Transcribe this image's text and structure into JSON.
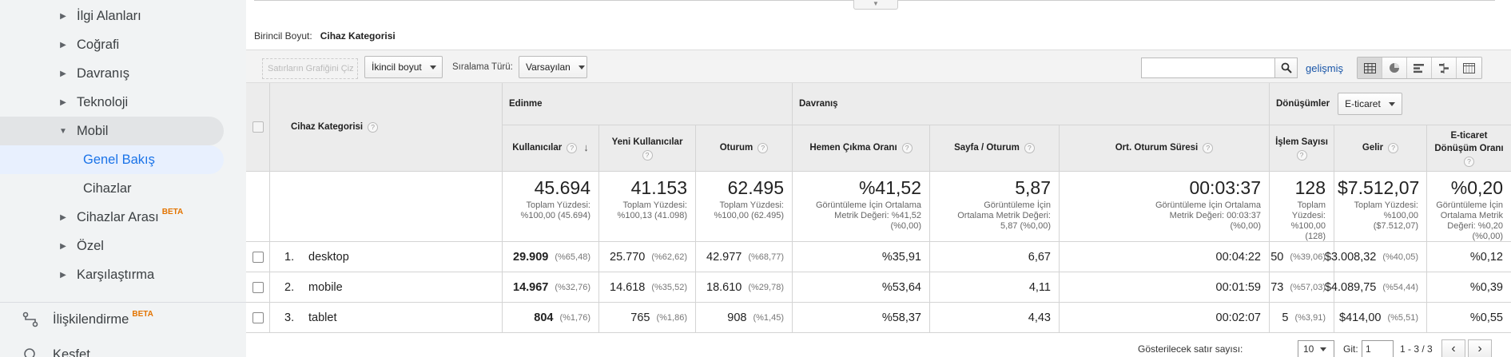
{
  "sidebar": {
    "items": [
      {
        "label": "İlgi Alanları"
      },
      {
        "label": "Coğrafi"
      },
      {
        "label": "Davranış"
      },
      {
        "label": "Teknoloji"
      },
      {
        "label": "Mobil"
      },
      {
        "label": "Genel Bakış"
      },
      {
        "label": "Cihazlar"
      },
      {
        "label": "Cihazlar Arası",
        "badge": "BETA"
      },
      {
        "label": "Özel"
      },
      {
        "label": "Karşılaştırma"
      }
    ],
    "bottom": [
      {
        "label": "İlişkilendirme",
        "badge": "BETA"
      },
      {
        "label": "Keşfet"
      }
    ]
  },
  "dimension": {
    "label": "Birincil Boyut:",
    "value": "Cihaz Kategorisi"
  },
  "toolbar": {
    "plot_rows": "Satırların Grafiğini Çiz",
    "secondary_dim": "İkincil boyut",
    "sort_label": "Sıralama Türü:",
    "sort_value": "Varsayılan",
    "search_value": "",
    "advanced": "gelişmiş"
  },
  "table": {
    "dim_header": "Cihaz Kategorisi",
    "groups": {
      "acquisition": "Edinme",
      "behavior": "Davranış",
      "conversions": "Dönüşümler",
      "conversion_type": "E-ticaret"
    },
    "columns": {
      "users": "Kullanıcılar",
      "new_users": "Yeni Kullanıcılar",
      "sessions": "Oturum",
      "bounce": "Hemen Çıkma Oranı",
      "pages": "Sayfa / Oturum",
      "duration": "Ort. Oturum Süresi",
      "transactions": "İşlem Sayısı",
      "revenue": "Gelir",
      "conv_rate": "E-ticaret Dönüşüm Oranı"
    },
    "totals": {
      "users": {
        "big": "45.694",
        "sm1": "Toplam Yüzdesi:",
        "sm2": "%100,00 (45.694)"
      },
      "new_users": {
        "big": "41.153",
        "sm1": "Toplam Yüzdesi:",
        "sm2": "%100,13 (41.098)"
      },
      "sessions": {
        "big": "62.495",
        "sm1": "Toplam Yüzdesi:",
        "sm2": "%100,00 (62.495)"
      },
      "bounce": {
        "big": "%41,52",
        "sm1": "Görüntüleme İçin Ortalama",
        "sm2": "Metrik Değeri: %41,52",
        "sm3": "(%0,00)"
      },
      "pages": {
        "big": "5,87",
        "sm1": "Görüntüleme İçin",
        "sm2": "Ortalama Metrik Değeri:",
        "sm3": "5,87 (%0,00)"
      },
      "duration": {
        "big": "00:03:37",
        "sm1": "Görüntüleme İçin Ortalama",
        "sm2": "Metrik Değeri: 00:03:37",
        "sm3": "(%0,00)"
      },
      "transactions": {
        "big": "128",
        "sm1": "Toplam",
        "sm2": "Yüzdesi:",
        "sm3": "%100,00 (128)"
      },
      "revenue": {
        "big": "$7.512,07",
        "sm1": "Toplam Yüzdesi:",
        "sm2": "%100,00 ($7.512,07)"
      },
      "conv_rate": {
        "big": "%0,20",
        "sm1": "Görüntüleme İçin",
        "sm2": "Ortalama Metrik",
        "sm3": "Değeri: %0,20 (%0,00)"
      }
    },
    "rows": [
      {
        "idx": "1.",
        "name": "desktop",
        "users": "29.909",
        "users_pct": "(%65,48)",
        "new_users": "25.770",
        "new_users_pct": "(%62,62)",
        "sessions": "42.977",
        "sessions_pct": "(%68,77)",
        "bounce": "%35,91",
        "pages": "6,67",
        "duration": "00:04:22",
        "transactions": "50",
        "transactions_pct": "(%39,06)",
        "revenue": "$3.008,32",
        "revenue_pct": "(%40,05)",
        "conv_rate": "%0,12"
      },
      {
        "idx": "2.",
        "name": "mobile",
        "users": "14.967",
        "users_pct": "(%32,76)",
        "new_users": "14.618",
        "new_users_pct": "(%35,52)",
        "sessions": "18.610",
        "sessions_pct": "(%29,78)",
        "bounce": "%53,64",
        "pages": "4,11",
        "duration": "00:01:59",
        "transactions": "73",
        "transactions_pct": "(%57,03)",
        "revenue": "$4.089,75",
        "revenue_pct": "(%54,44)",
        "conv_rate": "%0,39"
      },
      {
        "idx": "3.",
        "name": "tablet",
        "users": "804",
        "users_pct": "(%1,76)",
        "new_users": "765",
        "new_users_pct": "(%1,86)",
        "sessions": "908",
        "sessions_pct": "(%1,45)",
        "bounce": "%58,37",
        "pages": "4,43",
        "duration": "00:02:07",
        "transactions": "5",
        "transactions_pct": "(%3,91)",
        "revenue": "$414,00",
        "revenue_pct": "(%5,51)",
        "conv_rate": "%0,55"
      }
    ]
  },
  "pager": {
    "rows_label": "Gösterilecek satır sayısı:",
    "rows_value": "10",
    "goto_label": "Git:",
    "goto_value": "1",
    "range": "1 - 3 / 3"
  },
  "icons": {
    "search": "search-icon",
    "grid": "data-table-icon",
    "pie": "pie-chart-icon",
    "bars": "performance-icon",
    "compare": "comparison-icon",
    "pivot": "pivot-icon"
  }
}
